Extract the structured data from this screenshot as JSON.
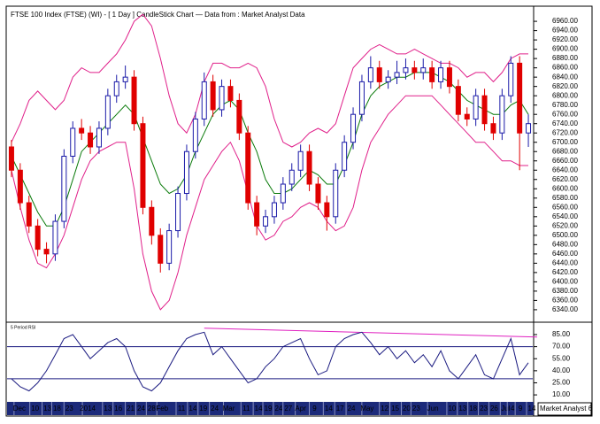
{
  "chart_data": [
    {
      "type": "candlestick",
      "title": "FTSE 100 Index (FTSE) (WI) -  [ 1 Day ] CandleStick Chart — Data from : Market Analyst Data",
      "open": [
        6690,
        6640,
        6570,
        6520,
        6470,
        6460,
        6530,
        6670,
        6730,
        6720,
        6690,
        6730,
        6800,
        6830,
        6840,
        6740,
        6560,
        6500,
        6440,
        6510,
        6590,
        6680,
        6750,
        6830,
        6770,
        6820,
        6790,
        6720,
        6570,
        6520,
        6540,
        6570,
        6610,
        6640,
        6680,
        6610,
        6570,
        6540,
        6640,
        6700,
        6760,
        6830,
        6860,
        6830,
        6840,
        6850,
        6860,
        6850,
        6860,
        6830,
        6860,
        6820,
        6760,
        6750,
        6800,
        6740,
        6720,
        6800,
        6870,
        6720
      ],
      "high": [
        6705,
        6655,
        6585,
        6535,
        6485,
        6545,
        6685,
        6745,
        6750,
        6735,
        6745,
        6815,
        6845,
        6865,
        6855,
        6755,
        6575,
        6515,
        6525,
        6605,
        6695,
        6765,
        6850,
        6845,
        6835,
        6835,
        6805,
        6735,
        6585,
        6555,
        6585,
        6625,
        6655,
        6695,
        6695,
        6625,
        6585,
        6655,
        6715,
        6775,
        6845,
        6885,
        6875,
        6855,
        6875,
        6880,
        6875,
        6880,
        6875,
        6875,
        6875,
        6835,
        6775,
        6815,
        6815,
        6755,
        6815,
        6885,
        6885,
        6760
      ],
      "low": [
        6625,
        6555,
        6505,
        6455,
        6440,
        6445,
        6515,
        6655,
        6705,
        6675,
        6675,
        6715,
        6785,
        6815,
        6725,
        6545,
        6480,
        6420,
        6425,
        6495,
        6575,
        6665,
        6735,
        6755,
        6755,
        6775,
        6705,
        6555,
        6500,
        6505,
        6525,
        6555,
        6595,
        6625,
        6595,
        6555,
        6510,
        6525,
        6625,
        6685,
        6745,
        6815,
        6815,
        6815,
        6825,
        6835,
        6835,
        6835,
        6815,
        6815,
        6805,
        6745,
        6735,
        6735,
        6725,
        6705,
        6705,
        6785,
        6640,
        6690
      ],
      "close": [
        6640,
        6570,
        6520,
        6470,
        6460,
        6530,
        6670,
        6730,
        6720,
        6690,
        6730,
        6800,
        6830,
        6840,
        6740,
        6560,
        6500,
        6440,
        6510,
        6590,
        6680,
        6750,
        6830,
        6770,
        6820,
        6790,
        6720,
        6570,
        6520,
        6540,
        6570,
        6610,
        6640,
        6680,
        6610,
        6570,
        6540,
        6640,
        6700,
        6760,
        6830,
        6860,
        6830,
        6840,
        6850,
        6860,
        6850,
        6860,
        6830,
        6860,
        6820,
        6760,
        6750,
        6800,
        6740,
        6720,
        6800,
        6870,
        6720,
        6740
      ],
      "up_color": "#1a1aa8",
      "down_color": "#e00000",
      "series": [
        {
          "color": "#e0208a",
          "values": [
            6700,
            6740,
            6790,
            6810,
            6790,
            6770,
            6790,
            6840,
            6860,
            6850,
            6850,
            6870,
            6890,
            6920,
            6960,
            6975,
            6950,
            6880,
            6800,
            6740,
            6720,
            6760,
            6830,
            6870,
            6870,
            6860,
            6860,
            6870,
            6860,
            6820,
            6750,
            6700,
            6690,
            6700,
            6720,
            6730,
            6720,
            6740,
            6800,
            6860,
            6880,
            6900,
            6910,
            6900,
            6890,
            6890,
            6900,
            6890,
            6880,
            6870,
            6870,
            6860,
            6840,
            6850,
            6850,
            6830,
            6850,
            6880,
            6890,
            6890
          ]
        },
        {
          "color": "#0a7a0a",
          "values": [
            6670,
            6630,
            6590,
            6550,
            6520,
            6520,
            6560,
            6620,
            6680,
            6700,
            6720,
            6740,
            6760,
            6780,
            6760,
            6710,
            6660,
            6610,
            6590,
            6600,
            6630,
            6680,
            6720,
            6760,
            6780,
            6790,
            6770,
            6720,
            6680,
            6620,
            6590,
            6590,
            6600,
            6620,
            6640,
            6630,
            6610,
            6610,
            6650,
            6700,
            6760,
            6800,
            6820,
            6830,
            6840,
            6840,
            6850,
            6850,
            6850,
            6840,
            6830,
            6810,
            6790,
            6780,
            6770,
            6760,
            6760,
            6780,
            6790,
            6760
          ]
        },
        {
          "color": "#e0208a",
          "values": [
            6640,
            6560,
            6490,
            6440,
            6430,
            6460,
            6500,
            6560,
            6620,
            6660,
            6680,
            6690,
            6700,
            6700,
            6600,
            6460,
            6380,
            6340,
            6360,
            6420,
            6500,
            6560,
            6620,
            6650,
            6680,
            6700,
            6660,
            6590,
            6520,
            6490,
            6500,
            6530,
            6540,
            6560,
            6570,
            6560,
            6530,
            6510,
            6520,
            6560,
            6640,
            6700,
            6730,
            6760,
            6780,
            6800,
            6800,
            6800,
            6800,
            6780,
            6760,
            6740,
            6720,
            6700,
            6700,
            6680,
            6660,
            6660,
            6650,
            6650
          ]
        }
      ],
      "ylim": [
        6317,
        6983
      ],
      "yticks": [
        {
          "value": 6340,
          "label": "6340.00"
        },
        {
          "value": 6360,
          "label": "6360.00"
        },
        {
          "value": 6380,
          "label": "6380.00"
        },
        {
          "value": 6400,
          "label": "6400.00"
        },
        {
          "value": 6420,
          "label": "6420.00"
        },
        {
          "value": 6440,
          "label": "6440.00"
        },
        {
          "value": 6460,
          "label": "6460.00"
        },
        {
          "value": 6480,
          "label": "6480.00"
        },
        {
          "value": 6500,
          "label": "6500.00"
        },
        {
          "value": 6520,
          "label": "6520.00"
        },
        {
          "value": 6540,
          "label": "6540.00"
        },
        {
          "value": 6560,
          "label": "6560.00"
        },
        {
          "value": 6580,
          "label": "6580.00"
        },
        {
          "value": 6600,
          "label": "6600.00"
        },
        {
          "value": 6620,
          "label": "6620.00"
        },
        {
          "value": 6640,
          "label": "6640.00"
        },
        {
          "value": 6660,
          "label": "6660.00"
        },
        {
          "value": 6680,
          "label": "6680.00"
        },
        {
          "value": 6700,
          "label": "6700.00"
        },
        {
          "value": 6720,
          "label": "6720.00"
        },
        {
          "value": 6740,
          "label": "6740.00"
        },
        {
          "value": 6760,
          "label": "6760.00"
        },
        {
          "value": 6780,
          "label": "6780.00"
        },
        {
          "value": 6800,
          "label": "6800.00"
        },
        {
          "value": 6820,
          "label": "6820.00"
        },
        {
          "value": 6840,
          "label": "6840.00"
        },
        {
          "value": 6860,
          "label": "6860.00"
        },
        {
          "value": 6880,
          "label": "6880.00"
        },
        {
          "value": 6900,
          "label": "6900.00"
        },
        {
          "value": 6920,
          "label": "6920.00"
        },
        {
          "value": 6940,
          "label": "6940.00"
        },
        {
          "value": 6960,
          "label": "6960.00"
        }
      ],
      "xticks": [
        {
          "value": 0.9,
          "label": "Dec"
        },
        {
          "value": 2.7,
          "label": "10"
        },
        {
          "value": 4.1,
          "label": "13"
        },
        {
          "value": 5.2,
          "label": "18"
        },
        {
          "value": 6.6,
          "label": "23"
        },
        {
          "value": 8.7,
          "label": "2014"
        },
        {
          "value": 11.0,
          "label": "13"
        },
        {
          "value": 12.2,
          "label": "16"
        },
        {
          "value": 13.6,
          "label": "21"
        },
        {
          "value": 14.8,
          "label": "24"
        },
        {
          "value": 16.0,
          "label": "28"
        },
        {
          "value": 17.2,
          "label": "Feb"
        },
        {
          "value": 19.4,
          "label": "11"
        },
        {
          "value": 20.7,
          "label": "14"
        },
        {
          "value": 21.9,
          "label": "19"
        },
        {
          "value": 23.2,
          "label": "24"
        },
        {
          "value": 24.8,
          "label": "Mar"
        },
        {
          "value": 26.8,
          "label": "11"
        },
        {
          "value": 28.2,
          "label": "14"
        },
        {
          "value": 29.3,
          "label": "19"
        },
        {
          "value": 30.5,
          "label": "24"
        },
        {
          "value": 31.6,
          "label": "27"
        },
        {
          "value": 33.0,
          "label": "Apr"
        },
        {
          "value": 34.6,
          "label": "9"
        },
        {
          "value": 36.2,
          "label": "14"
        },
        {
          "value": 37.5,
          "label": "17"
        },
        {
          "value": 38.8,
          "label": "24"
        },
        {
          "value": 40.6,
          "label": "May"
        },
        {
          "value": 42.6,
          "label": "12"
        },
        {
          "value": 43.8,
          "label": "15"
        },
        {
          "value": 45.1,
          "label": "20"
        },
        {
          "value": 46.2,
          "label": "23"
        },
        {
          "value": 48.1,
          "label": "Jun"
        },
        {
          "value": 50.3,
          "label": "10"
        },
        {
          "value": 51.5,
          "label": "13"
        },
        {
          "value": 52.7,
          "label": "18"
        },
        {
          "value": 53.9,
          "label": "23"
        },
        {
          "value": 55.1,
          "label": "26"
        },
        {
          "value": 56.4,
          "label": "Jul"
        },
        {
          "value": 57.2,
          "label": "4"
        },
        {
          "value": 58.1,
          "label": "9"
        },
        {
          "value": 59.4,
          "label": "14"
        }
      ]
    },
    {
      "type": "line",
      "title": "5 Period RSI",
      "series": [
        {
          "color": "#1a1a80",
          "values": [
            30,
            20,
            15,
            25,
            40,
            60,
            80,
            85,
            70,
            55,
            65,
            75,
            80,
            70,
            40,
            20,
            15,
            25,
            45,
            65,
            80,
            85,
            88,
            60,
            70,
            55,
            40,
            25,
            30,
            45,
            55,
            70,
            75,
            80,
            55,
            35,
            40,
            70,
            80,
            85,
            88,
            75,
            60,
            70,
            55,
            65,
            50,
            60,
            45,
            65,
            40,
            30,
            45,
            60,
            35,
            30,
            55,
            80,
            35,
            50
          ]
        }
      ],
      "levels": [
        70,
        30
      ],
      "level_color": "#1a1a80",
      "trendline": {
        "x": [
          22,
          60
        ],
        "values": [
          93,
          82
        ],
        "color": "#e020c0"
      },
      "ylim": [
        3.5,
        96
      ],
      "yticks": [
        {
          "value": 10,
          "label": "10.00"
        },
        {
          "value": 25,
          "label": "25.00"
        },
        {
          "value": 40,
          "label": "40.00"
        },
        {
          "value": 55,
          "label": "55.00"
        },
        {
          "value": 70,
          "label": "70.00"
        },
        {
          "value": 85,
          "label": "85.00"
        }
      ]
    }
  ],
  "footer": "Market Analyst 6"
}
